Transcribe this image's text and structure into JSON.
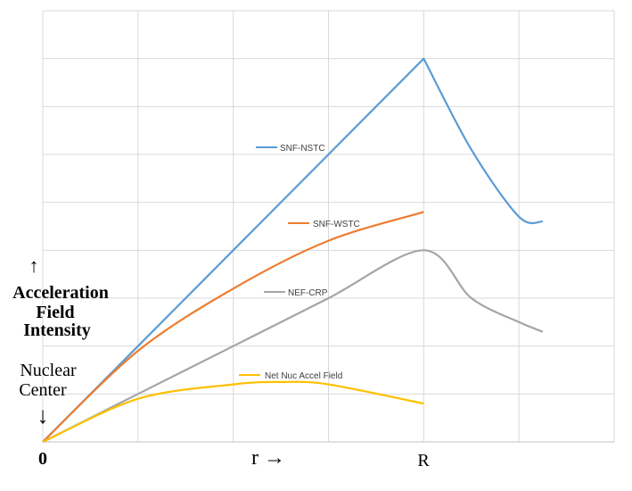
{
  "chart_data": {
    "type": "line",
    "title": "",
    "grid": true,
    "xlim": [
      0,
      6
    ],
    "ylim": [
      0,
      9
    ],
    "x_tick_labels": [
      {
        "x": 0,
        "label": "0"
      },
      {
        "x": 4,
        "label": "R"
      }
    ],
    "x_axis_label": "r →",
    "y_axis_label": {
      "arrow": "↑",
      "line1": "Acceleration",
      "line2": "Field",
      "line3": "Intensity"
    },
    "origin_label": {
      "line1": "Nuclear",
      "line2": "Center",
      "arrow": "↓"
    },
    "series": [
      {
        "name": "SNF-NSTC",
        "color": "#5b9bd5",
        "points": [
          [
            0,
            0
          ],
          [
            1,
            2
          ],
          [
            2,
            4
          ],
          [
            3,
            6
          ],
          [
            4,
            8
          ],
          [
            4.5,
            6.1
          ],
          [
            5,
            4.7
          ],
          [
            5.25,
            4.6
          ]
        ]
      },
      {
        "name": "SNF-WSTC",
        "color": "#ed7d31",
        "points": [
          [
            0,
            0
          ],
          [
            1,
            1.9
          ],
          [
            2,
            3.2
          ],
          [
            3,
            4.2
          ],
          [
            4,
            4.8
          ]
        ]
      },
      {
        "name": "NEF-CRP",
        "color": "#a5a5a5",
        "points": [
          [
            0,
            0
          ],
          [
            1,
            1
          ],
          [
            2,
            2
          ],
          [
            3,
            3
          ],
          [
            4,
            4
          ],
          [
            4.5,
            3.0
          ],
          [
            5,
            2.5
          ],
          [
            5.25,
            2.3
          ]
        ]
      },
      {
        "name": "Net Nuc Accel Field",
        "color": "#ffc000",
        "points": [
          [
            0,
            0
          ],
          [
            1,
            0.9
          ],
          [
            2,
            1.2
          ],
          [
            2.5,
            1.25
          ],
          [
            3,
            1.2
          ],
          [
            4,
            0.8
          ]
        ]
      }
    ],
    "legend_placement": "inline labels on each curve"
  }
}
